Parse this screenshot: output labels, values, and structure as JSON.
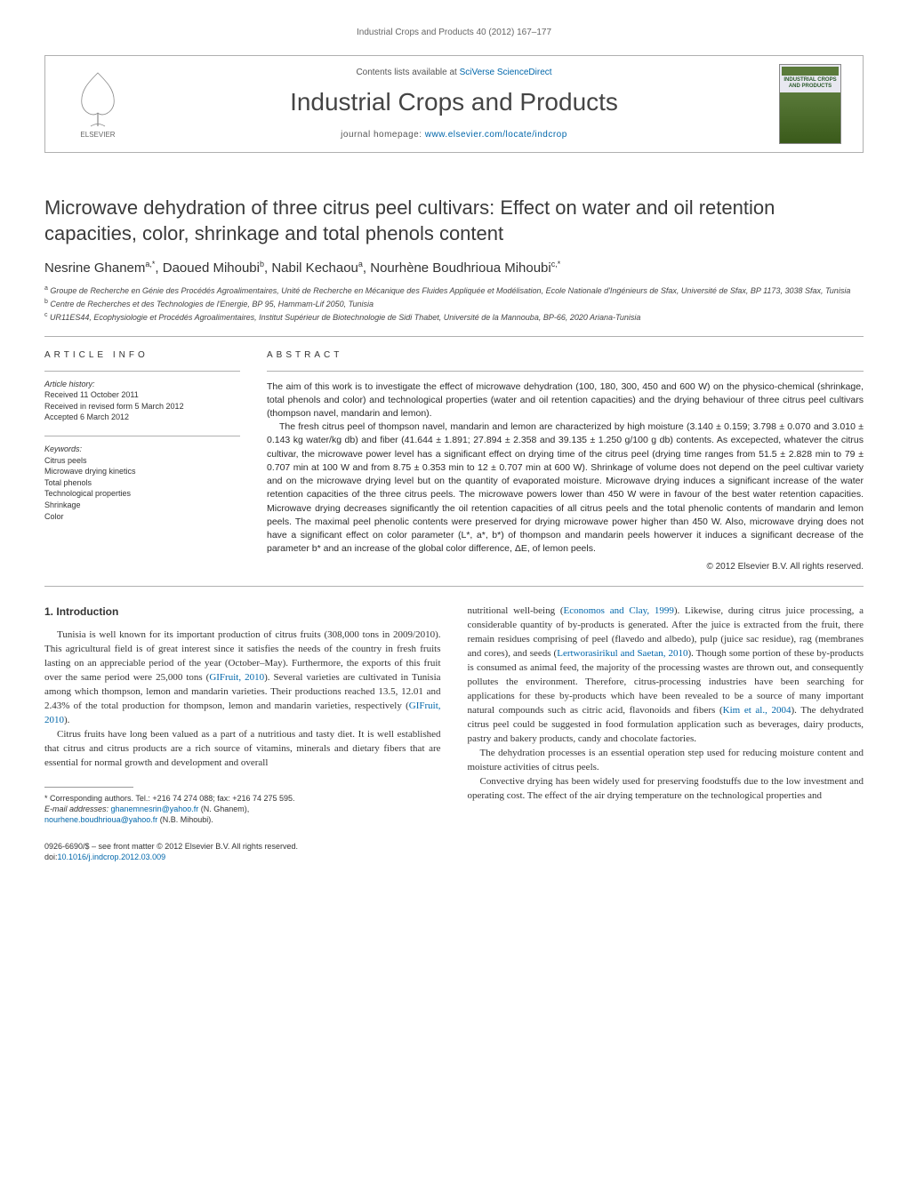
{
  "header": {
    "running_head": "Industrial Crops and Products 40 (2012) 167–177",
    "contents_prefix": "Contents lists available at ",
    "contents_link": "SciVerse ScienceDirect",
    "journal_name": "Industrial Crops and Products",
    "homepage_prefix": "journal homepage: ",
    "homepage_url": "www.elsevier.com/locate/indcrop",
    "publisher_logo_label": "ELSEVIER",
    "cover_thumb_text": "INDUSTRIAL CROPS AND PRODUCTS"
  },
  "article": {
    "title": "Microwave dehydration of three citrus peel cultivars: Effect on water and oil retention capacities, color, shrinkage and total phenols content",
    "authors_html": "Nesrine Ghanem<sup>a,*</sup>, Daoued Mihoubi<sup>b</sup>, Nabil Kechaou<sup>a</sup>, Nourhène Boudhrioua Mihoubi<sup>c,*</sup>",
    "affiliations": [
      {
        "sup": "a",
        "text": "Groupe de Recherche en Génie des Procédés Agroalimentaires, Unité de Recherche en Mécanique des Fluides Appliquée et Modélisation, Ecole Nationale d'Ingénieurs de Sfax, Université de Sfax, BP 1173, 3038 Sfax, Tunisia"
      },
      {
        "sup": "b",
        "text": "Centre de Recherches et des Technologies de l'Energie, BP 95, Hammam-Lif 2050, Tunisia"
      },
      {
        "sup": "c",
        "text": "UR11ES44, Ecophysiologie et Procédés Agroalimentaires, Institut Supérieur de Biotechnologie de Sidi Thabet, Université de la Mannouba, BP-66, 2020 Ariana-Tunisia"
      }
    ]
  },
  "info": {
    "section_label": "ARTICLE INFO",
    "history_label": "Article history:",
    "history": [
      "Received 11 October 2011",
      "Received in revised form 5 March 2012",
      "Accepted 6 March 2012"
    ],
    "keywords_label": "Keywords:",
    "keywords": [
      "Citrus peels",
      "Microwave drying kinetics",
      "Total phenols",
      "Technological properties",
      "Shrinkage",
      "Color"
    ]
  },
  "abstract": {
    "section_label": "ABSTRACT",
    "paragraphs": [
      "The aim of this work is to investigate the effect of microwave dehydration (100, 180, 300, 450 and 600 W) on the physico-chemical (shrinkage, total phenols and color) and technological properties (water and oil retention capacities) and the drying behaviour of three citrus peel cultivars (thompson navel, mandarin and lemon).",
      "The fresh citrus peel of thompson navel, mandarin and lemon are characterized by high moisture (3.140 ± 0.159; 3.798 ± 0.070 and 3.010 ± 0.143 kg water/kg db) and fiber (41.644 ± 1.891; 27.894 ± 2.358 and 39.135 ± 1.250 g/100 g db) contents. As excepected, whatever the citrus cultivar, the microwave power level has a significant effect on drying time of the citrus peel (drying time ranges from 51.5 ± 2.828 min to 79 ± 0.707 min at 100 W and from 8.75 ± 0.353 min to 12 ± 0.707 min at 600 W). Shrinkage of volume does not depend on the peel cultivar variety and on the microwave drying level but on the quantity of evaporated moisture. Microwave drying induces a significant increase of the water retention capacities of the three citrus peels. The microwave powers lower than 450 W were in favour of the best water retention capacities. Microwave drying decreases significantly the oil retention capacities of all citrus peels and the total phenolic contents of mandarin and lemon peels. The maximal peel phenolic contents were preserved for drying microwave power higher than 450 W. Also, microwave drying does not have a significant effect on color parameter (L*, a*, b*) of thompson and mandarin peels howerver it induces a significant decrease of the parameter b* and an increase of the global color difference, ΔE, of lemon peels."
    ],
    "copyright": "© 2012 Elsevier B.V. All rights reserved."
  },
  "body": {
    "section_number": "1.",
    "section_title": "Introduction",
    "left_paragraphs": [
      "Tunisia is well known for its important production of citrus fruits (308,000 tons in 2009/2010). This agricultural field is of great interest since it satisfies the needs of the country in fresh fruits lasting on an appreciable period of the year (October–May). Furthermore, the exports of this fruit over the same period were 25,000 tons (<a href='#'>GIFruit, 2010</a>). Several varieties are cultivated in Tunisia among which thompson, lemon and mandarin varieties. Their productions reached 13.5, 12.01 and 2.43% of the total production for thompson, lemon and mandarin varieties, respectively (<a href='#'>GIFruit, 2010</a>).",
      "Citrus fruits have long been valued as a part of a nutritious and tasty diet. It is well established that citrus and citrus products are a rich source of vitamins, minerals and dietary fibers that are essential for normal growth and development and overall"
    ],
    "right_paragraphs": [
      "nutritional well-being (<a href='#'>Economos and Clay, 1999</a>). Likewise, during citrus juice processing, a considerable quantity of by-products is generated. After the juice is extracted from the fruit, there remain residues comprising of peel (flavedo and albedo), pulp (juice sac residue), rag (membranes and cores), and seeds (<a href='#'>Lertworasirikul and Saetan, 2010</a>). Though some portion of these by-products is consumed as animal feed, the majority of the processing wastes are thrown out, and consequently pollutes the environment. Therefore, citrus-processing industries have been searching for applications for these by-products which have been revealed to be a source of many important natural compounds such as citric acid, flavonoids and fibers (<a href='#'>Kim et al., 2004</a>). The dehydrated citrus peel could be suggested in food formulation application such as beverages, dairy products, pastry and bakery products, candy and chocolate factories.",
      "The dehydration processes is an essential operation step used for reducing moisture content and moisture activities of citrus peels.",
      "Convective drying has been widely used for preserving foodstuffs due to the low investment and operating cost. The effect of the air drying temperature on the technological properties and"
    ]
  },
  "footnote": {
    "corresponding": "* Corresponding authors. Tel.: +216 74 274 088; fax: +216 74 275 595.",
    "email_label": "E-mail addresses: ",
    "emails": [
      {
        "addr": "ghanemnesrin@yahoo.fr",
        "who": " (N. Ghanem),"
      },
      {
        "addr": "nourhene.boudhrioua@yahoo.fr",
        "who": " (N.B. Mihoubi)."
      }
    ]
  },
  "footer": {
    "line1": "0926-6690/$ – see front matter © 2012 Elsevier B.V. All rights reserved.",
    "doi_label": "doi:",
    "doi": "10.1016/j.indcrop.2012.03.009"
  },
  "colors": {
    "link": "#0066aa",
    "rule": "#b0b0b0",
    "text": "#333333"
  }
}
